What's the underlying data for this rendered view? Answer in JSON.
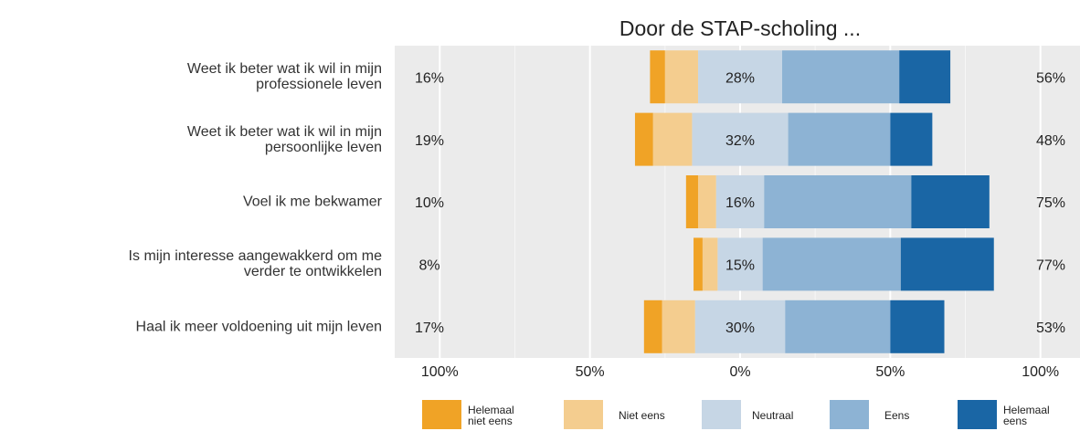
{
  "chart_data": {
    "type": "diverging_bar",
    "title": "Door de STAP-scholing ...",
    "categories": [
      "Weet ik beter wat ik wil in mijn\nprofessionele leven",
      "Weet ik beter wat ik wil in mijn\npersoonlijke leven",
      "Voel ik me bekwamer",
      "Is mijn interesse aangewakkerd om me\nverder te ontwikkelen",
      "Haal ik meer voldoening uit mijn leven"
    ],
    "series": [
      {
        "name": "Helemaal\nniet eens",
        "color": "#f0a326",
        "side": "negative",
        "values": [
          5,
          6,
          4,
          3,
          6
        ]
      },
      {
        "name": "Niet eens",
        "color": "#f4cd8f",
        "side": "negative",
        "values": [
          11,
          13,
          6,
          5,
          11
        ]
      },
      {
        "name": "Neutraal",
        "color": "#c6d6e5",
        "side": "neutral",
        "values": [
          28,
          32,
          16,
          15,
          30
        ],
        "value_labels": [
          "28%",
          "32%",
          "16%",
          "15%",
          "30%"
        ]
      },
      {
        "name": "Eens",
        "color": "#8db3d4",
        "side": "positive",
        "values": [
          39,
          34,
          49,
          46,
          35
        ]
      },
      {
        "name": "Helemaal\neens",
        "color": "#1a66a5",
        "side": "positive",
        "values": [
          17,
          14,
          26,
          31,
          18
        ]
      }
    ],
    "negative_labels": [
      "16%",
      "19%",
      "10%",
      "8%",
      "17%"
    ],
    "positive_labels": [
      "56%",
      "48%",
      "75%",
      "77%",
      "53%"
    ],
    "xlim": [
      -115,
      115
    ],
    "xticks": [
      {
        "value": -100,
        "label": "100%"
      },
      {
        "value": -50,
        "label": "50%"
      },
      {
        "value": 0,
        "label": "0%"
      },
      {
        "value": 50,
        "label": "50%"
      },
      {
        "value": 100,
        "label": "100%"
      }
    ],
    "grid": true,
    "legend": "bottom"
  }
}
